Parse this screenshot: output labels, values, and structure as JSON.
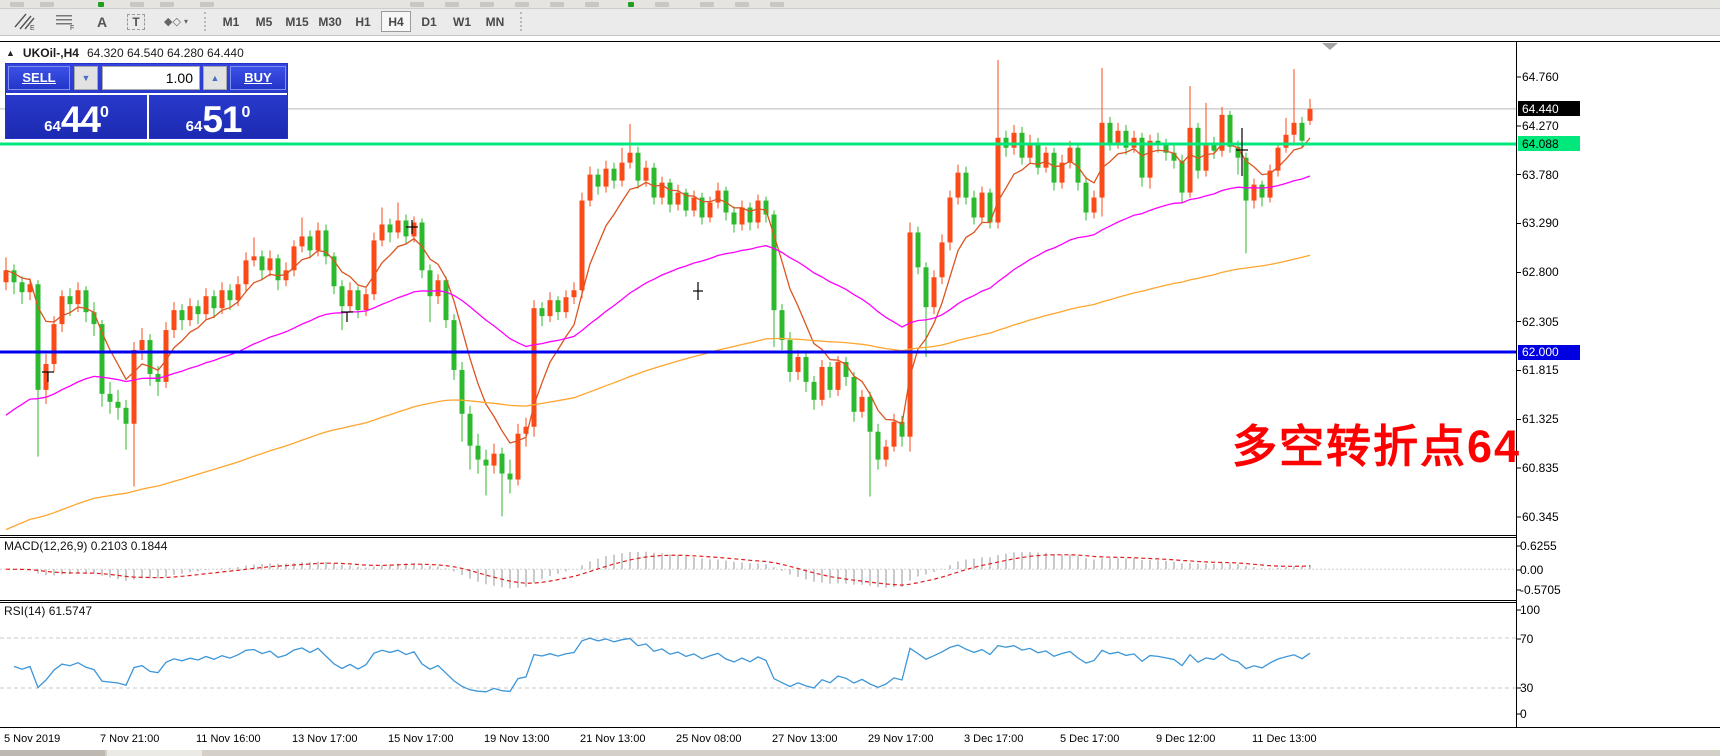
{
  "window": {
    "header": {
      "symbol": "UKOil-,H4",
      "ohlc": "64.320 64.540 64.280 64.440"
    }
  },
  "toolbar": {
    "tools": [
      {
        "name": "channel-tool",
        "glyph": "E"
      },
      {
        "name": "fibonacci-tool",
        "glyph": "F"
      },
      {
        "name": "text-label-tool",
        "glyph": "A"
      },
      {
        "name": "text-box-tool",
        "glyph": "T"
      },
      {
        "name": "shapes-tool",
        "glyph": "◆"
      }
    ],
    "timeframes": [
      {
        "label": "M1",
        "selected": false
      },
      {
        "label": "M5",
        "selected": false
      },
      {
        "label": "M15",
        "selected": false
      },
      {
        "label": "M30",
        "selected": false
      },
      {
        "label": "H1",
        "selected": false
      },
      {
        "label": "H4",
        "selected": true
      },
      {
        "label": "D1",
        "selected": false
      },
      {
        "label": "W1",
        "selected": false
      },
      {
        "label": "MN",
        "selected": false
      }
    ]
  },
  "one_click": {
    "sell_label": "SELL",
    "buy_label": "BUY",
    "volume": "1.00",
    "sell_price_small": "64",
    "sell_price_big": "44",
    "sell_price_sup": "0",
    "buy_price_small": "64",
    "buy_price_big": "51",
    "buy_price_sup": "0"
  },
  "indicators": {
    "macd": {
      "title": "MACD(12,26,9)",
      "value": "0.2103 0.1844",
      "axis": [
        "0.6255",
        "0.00",
        "-0.5705"
      ]
    },
    "rsi": {
      "title": "RSI(14)",
      "value": "61.5747",
      "axis": [
        "100",
        "70",
        "30",
        "0"
      ],
      "levels": [
        70,
        30
      ]
    }
  },
  "annotation": {
    "text": "多空转折点64",
    "color": "#ff0000"
  },
  "colors": {
    "bull": "#fb4a17",
    "bear": "#2db92d",
    "ma_fast": "#dd5420",
    "ma_mid": "#ff00ff",
    "ma_slow": "#ffa530",
    "hline_blue": "#0000f0",
    "hline_green": "#00e87c",
    "current_line": "#b9b9b9",
    "tag_black_bg": "#000000",
    "tag_green_bg": "#00e87c",
    "tag_blue_bg": "#0000e0",
    "macd_hist": "#cbcbcb",
    "macd_signal": "#e02020",
    "rsi_line": "#3d96d8",
    "level_dash": "#c9c9c9"
  },
  "chart_data": {
    "type": "candlestick",
    "symbol": "UKOil-",
    "timeframe": "H4",
    "last_ohlc": {
      "open": 64.32,
      "high": 64.54,
      "low": 64.28,
      "close": 64.44
    },
    "y_ticks": [
      "64.760",
      "64.270",
      "63.780",
      "63.290",
      "62.800",
      "62.305",
      "61.815",
      "61.325",
      "60.835",
      "60.345"
    ],
    "y_tags": [
      {
        "text": "64.440",
        "price": 64.44,
        "bg": "#000000",
        "fg": "#ffffff"
      },
      {
        "text": "64.088",
        "price": 64.088,
        "bg": "#00e87c",
        "fg": "#000000"
      },
      {
        "text": "62.000",
        "price": 62.0,
        "bg": "#0000e0",
        "fg": "#ffffff"
      }
    ],
    "x_labels": [
      "5 Nov 2019",
      "7 Nov 21:00",
      "11 Nov 16:00",
      "13 Nov 17:00",
      "15 Nov 17:00",
      "19 Nov 13:00",
      "21 Nov 13:00",
      "25 Nov 08:00",
      "27 Nov 13:00",
      "29 Nov 17:00",
      "3 Dec 17:00",
      "5 Dec 17:00",
      "9 Dec 12:00",
      "11 Dec 13:00"
    ],
    "hlines": [
      {
        "price": 64.44,
        "color": "#b9b9b9",
        "width": 1,
        "role": "current-price"
      },
      {
        "price": 64.088,
        "color": "#00e87c",
        "width": 3,
        "role": "support-line"
      },
      {
        "price": 62.0,
        "color": "#0000f0",
        "width": 3,
        "role": "support-line"
      }
    ],
    "moving_averages": [
      {
        "period": 7,
        "color": "#dd5420",
        "seed": null
      },
      {
        "period": 45,
        "color": "#ff00ff",
        "seed": 61.3
      },
      {
        "period": 140,
        "color": "#ffa530",
        "seed": 60.18
      }
    ],
    "macd_axis": {
      "top": 0.6255,
      "zero": 0.0,
      "bottom": -0.5705
    },
    "rsi_axis": {
      "top": 100,
      "upper": 70,
      "lower": 30,
      "bottom": 0
    },
    "candles": [
      [
        62.7,
        62.95,
        62.62,
        62.82
      ],
      [
        62.82,
        62.88,
        62.58,
        62.7
      ],
      [
        62.7,
        62.76,
        62.48,
        62.6
      ],
      [
        62.6,
        62.74,
        62.52,
        62.68
      ],
      [
        62.68,
        62.72,
        60.95,
        61.62
      ],
      [
        61.62,
        61.98,
        61.48,
        61.88
      ],
      [
        61.88,
        62.36,
        61.8,
        62.28
      ],
      [
        62.28,
        62.62,
        62.2,
        62.56
      ],
      [
        62.56,
        62.64,
        62.36,
        62.48
      ],
      [
        62.48,
        62.7,
        62.4,
        62.62
      ],
      [
        62.62,
        62.66,
        62.3,
        62.4
      ],
      [
        62.4,
        62.5,
        62.16,
        62.28
      ],
      [
        62.28,
        62.32,
        61.45,
        61.58
      ],
      [
        61.58,
        61.7,
        61.38,
        61.5
      ],
      [
        61.5,
        61.62,
        61.32,
        61.44
      ],
      [
        61.44,
        61.52,
        61.02,
        61.28
      ],
      [
        61.28,
        62.1,
        60.65,
        62.02
      ],
      [
        62.02,
        62.24,
        61.92,
        62.12
      ],
      [
        62.12,
        62.18,
        61.66,
        61.78
      ],
      [
        61.78,
        61.86,
        61.56,
        61.7
      ],
      [
        61.7,
        62.3,
        61.64,
        62.22
      ],
      [
        62.22,
        62.5,
        62.14,
        62.42
      ],
      [
        62.42,
        62.48,
        62.22,
        62.32
      ],
      [
        62.32,
        62.54,
        62.26,
        62.46
      ],
      [
        62.46,
        62.52,
        62.28,
        62.38
      ],
      [
        62.38,
        62.64,
        62.32,
        62.56
      ],
      [
        62.56,
        62.62,
        62.34,
        62.44
      ],
      [
        62.44,
        62.7,
        62.38,
        62.62
      ],
      [
        62.62,
        62.68,
        62.42,
        62.52
      ],
      [
        62.52,
        62.76,
        62.46,
        62.68
      ],
      [
        62.68,
        63.0,
        62.6,
        62.92
      ],
      [
        62.92,
        63.15,
        62.86,
        62.96
      ],
      [
        62.96,
        63.02,
        62.72,
        62.82
      ],
      [
        62.82,
        63.02,
        62.76,
        62.94
      ],
      [
        62.94,
        62.98,
        62.62,
        62.72
      ],
      [
        62.72,
        62.9,
        62.66,
        62.82
      ],
      [
        62.82,
        63.12,
        62.76,
        63.06
      ],
      [
        63.06,
        63.35,
        63.0,
        63.16
      ],
      [
        63.16,
        63.22,
        62.94,
        63.02
      ],
      [
        63.02,
        63.3,
        62.96,
        63.22
      ],
      [
        63.22,
        63.28,
        62.88,
        62.96
      ],
      [
        62.96,
        63.0,
        62.58,
        62.66
      ],
      [
        62.66,
        62.72,
        62.22,
        62.46
      ],
      [
        62.46,
        62.7,
        62.4,
        62.62
      ],
      [
        62.62,
        62.66,
        62.34,
        62.42
      ],
      [
        62.42,
        62.64,
        62.36,
        62.58
      ],
      [
        62.58,
        63.2,
        62.52,
        63.12
      ],
      [
        63.12,
        63.45,
        63.06,
        63.28
      ],
      [
        63.28,
        63.34,
        63.1,
        63.2
      ],
      [
        63.2,
        63.5,
        63.14,
        63.32
      ],
      [
        63.32,
        63.38,
        63.08,
        63.16
      ],
      [
        63.16,
        63.36,
        63.1,
        63.3
      ],
      [
        63.3,
        63.34,
        62.74,
        62.82
      ],
      [
        62.82,
        62.88,
        62.3,
        62.56
      ],
      [
        62.56,
        62.78,
        62.48,
        62.72
      ],
      [
        62.72,
        62.76,
        62.24,
        62.32
      ],
      [
        62.32,
        62.38,
        61.72,
        61.82
      ],
      [
        61.82,
        61.9,
        61.1,
        61.38
      ],
      [
        61.38,
        61.46,
        60.82,
        61.06
      ],
      [
        61.06,
        61.18,
        60.78,
        60.92
      ],
      [
        60.92,
        61.02,
        60.56,
        60.86
      ],
      [
        60.86,
        61.08,
        60.78,
        60.98
      ],
      [
        60.98,
        61.04,
        60.35,
        60.78
      ],
      [
        60.78,
        60.92,
        60.58,
        60.72
      ],
      [
        60.72,
        61.28,
        60.66,
        61.18
      ],
      [
        61.18,
        61.34,
        61.05,
        61.25
      ],
      [
        61.25,
        62.52,
        61.15,
        62.44
      ],
      [
        62.44,
        62.5,
        62.26,
        62.36
      ],
      [
        62.36,
        62.6,
        62.3,
        62.52
      ],
      [
        62.52,
        62.56,
        62.32,
        62.4
      ],
      [
        62.4,
        62.62,
        62.34,
        62.55
      ],
      [
        62.55,
        62.7,
        62.48,
        62.62
      ],
      [
        62.62,
        63.6,
        62.54,
        63.52
      ],
      [
        63.52,
        63.86,
        63.46,
        63.78
      ],
      [
        63.78,
        63.84,
        63.58,
        63.66
      ],
      [
        63.66,
        63.92,
        63.6,
        63.84
      ],
      [
        63.84,
        63.9,
        63.64,
        63.72
      ],
      [
        63.72,
        64.05,
        63.66,
        63.9
      ],
      [
        63.9,
        64.29,
        63.84,
        64.0
      ],
      [
        64.0,
        64.06,
        63.64,
        63.72
      ],
      [
        63.72,
        63.92,
        63.66,
        63.85
      ],
      [
        63.85,
        63.9,
        63.48,
        63.55
      ],
      [
        63.55,
        63.76,
        63.48,
        63.7
      ],
      [
        63.7,
        63.74,
        63.4,
        63.48
      ],
      [
        63.48,
        63.68,
        63.42,
        63.6
      ],
      [
        63.6,
        63.64,
        63.36,
        63.42
      ],
      [
        63.42,
        63.62,
        63.36,
        63.55
      ],
      [
        63.55,
        63.6,
        63.28,
        63.35
      ],
      [
        63.35,
        63.56,
        63.3,
        63.5
      ],
      [
        63.5,
        63.7,
        63.44,
        63.62
      ],
      [
        63.62,
        63.66,
        63.32,
        63.4
      ],
      [
        63.4,
        63.46,
        63.2,
        63.28
      ],
      [
        63.28,
        63.52,
        63.22,
        63.45
      ],
      [
        63.45,
        63.5,
        63.22,
        63.3
      ],
      [
        63.3,
        63.58,
        63.24,
        63.52
      ],
      [
        63.52,
        63.56,
        63.3,
        63.38
      ],
      [
        63.38,
        63.42,
        62.05,
        62.42
      ],
      [
        62.42,
        62.48,
        62.02,
        62.12
      ],
      [
        62.12,
        62.2,
        61.7,
        61.8
      ],
      [
        61.8,
        62.02,
        61.72,
        61.95
      ],
      [
        61.95,
        62.0,
        61.6,
        61.7
      ],
      [
        61.7,
        61.76,
        61.42,
        61.52
      ],
      [
        61.52,
        61.92,
        61.46,
        61.85
      ],
      [
        61.85,
        61.9,
        61.54,
        61.62
      ],
      [
        61.62,
        61.96,
        61.56,
        61.9
      ],
      [
        61.9,
        61.95,
        61.66,
        61.75
      ],
      [
        61.75,
        61.8,
        61.3,
        61.4
      ],
      [
        61.4,
        61.62,
        61.34,
        61.55
      ],
      [
        61.55,
        61.6,
        60.55,
        61.2
      ],
      [
        61.2,
        61.28,
        60.82,
        60.92
      ],
      [
        60.92,
        61.12,
        60.85,
        61.05
      ],
      [
        61.05,
        61.38,
        61.0,
        61.3
      ],
      [
        61.3,
        61.36,
        61.05,
        61.15
      ],
      [
        61.15,
        63.3,
        61.0,
        63.2
      ],
      [
        63.2,
        63.26,
        62.78,
        62.85
      ],
      [
        62.85,
        62.9,
        61.95,
        62.45
      ],
      [
        62.45,
        62.82,
        62.38,
        62.75
      ],
      [
        62.75,
        63.18,
        62.68,
        63.1
      ],
      [
        63.1,
        63.62,
        63.02,
        63.55
      ],
      [
        63.55,
        63.88,
        63.48,
        63.8
      ],
      [
        63.8,
        63.86,
        63.48,
        63.55
      ],
      [
        63.55,
        63.62,
        63.28,
        63.35
      ],
      [
        63.35,
        63.66,
        63.3,
        63.6
      ],
      [
        63.6,
        63.64,
        63.24,
        63.3
      ],
      [
        63.3,
        64.93,
        63.24,
        64.15
      ],
      [
        64.15,
        64.22,
        63.96,
        64.05
      ],
      [
        64.05,
        64.28,
        63.98,
        64.2
      ],
      [
        64.2,
        64.26,
        63.88,
        63.95
      ],
      [
        63.95,
        64.18,
        63.9,
        64.1
      ],
      [
        64.1,
        64.15,
        63.78,
        63.85
      ],
      [
        63.85,
        64.06,
        63.8,
        64.0
      ],
      [
        64.0,
        64.05,
        63.62,
        63.7
      ],
      [
        63.7,
        63.98,
        63.64,
        63.9
      ],
      [
        63.9,
        64.12,
        63.84,
        64.05
      ],
      [
        64.05,
        64.1,
        63.62,
        63.7
      ],
      [
        63.7,
        63.76,
        63.32,
        63.4
      ],
      [
        63.4,
        63.62,
        63.34,
        63.55
      ],
      [
        63.55,
        64.85,
        63.36,
        64.3
      ],
      [
        64.3,
        64.36,
        64.02,
        64.1
      ],
      [
        64.1,
        64.3,
        64.04,
        64.22
      ],
      [
        64.22,
        64.28,
        63.98,
        64.05
      ],
      [
        64.05,
        64.22,
        64.0,
        64.15
      ],
      [
        64.15,
        64.2,
        63.66,
        63.75
      ],
      [
        63.75,
        64.18,
        63.64,
        64.12
      ],
      [
        64.12,
        64.2,
        64.0,
        64.08
      ],
      [
        64.08,
        64.14,
        63.92,
        64.0
      ],
      [
        64.0,
        64.08,
        63.84,
        63.92
      ],
      [
        63.92,
        63.98,
        63.5,
        63.6
      ],
      [
        63.6,
        64.67,
        63.55,
        64.25
      ],
      [
        64.25,
        64.3,
        63.74,
        63.82
      ],
      [
        63.82,
        64.5,
        63.76,
        64.1
      ],
      [
        64.1,
        64.16,
        63.94,
        64.02
      ],
      [
        64.02,
        64.46,
        63.96,
        64.38
      ],
      [
        64.38,
        64.42,
        64.0,
        64.06
      ],
      [
        64.06,
        64.12,
        63.78,
        63.95
      ],
      [
        63.95,
        64.0,
        62.99,
        63.52
      ],
      [
        63.52,
        63.74,
        63.44,
        63.68
      ],
      [
        63.68,
        63.72,
        63.46,
        63.55
      ],
      [
        63.55,
        63.88,
        63.5,
        63.82
      ],
      [
        63.82,
        64.1,
        63.76,
        64.05
      ],
      [
        64.05,
        64.35,
        64.0,
        64.18
      ],
      [
        64.18,
        64.84,
        64.1,
        64.3
      ],
      [
        64.3,
        64.36,
        64.05,
        64.12
      ],
      [
        64.32,
        64.54,
        64.28,
        64.44
      ]
    ]
  }
}
